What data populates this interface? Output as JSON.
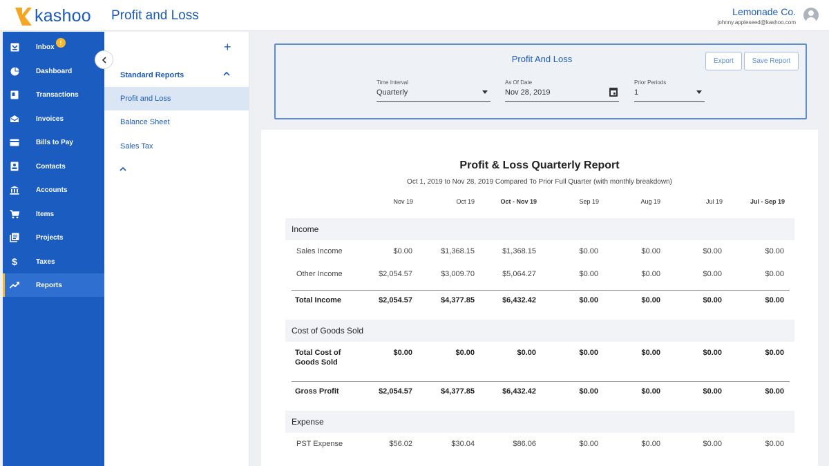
{
  "app": {
    "brand": "kashoo",
    "page_title": "Profit and Loss"
  },
  "account": {
    "company": "Lemonade Co.",
    "email": "johnny.appleseed@kashoo.com"
  },
  "nav": {
    "items": [
      {
        "label": "Inbox",
        "icon": "inbox-icon",
        "badge": "!"
      },
      {
        "label": "Dashboard",
        "icon": "dashboard-icon"
      },
      {
        "label": "Transactions",
        "icon": "transactions-icon"
      },
      {
        "label": "Invoices",
        "icon": "invoices-icon"
      },
      {
        "label": "Bills to Pay",
        "icon": "bills-icon"
      },
      {
        "label": "Contacts",
        "icon": "contacts-icon"
      },
      {
        "label": "Accounts",
        "icon": "bank-icon"
      },
      {
        "label": "Items",
        "icon": "cart-icon"
      },
      {
        "label": "Projects",
        "icon": "projects-icon"
      },
      {
        "label": "Taxes",
        "icon": "dollar-icon"
      },
      {
        "label": "Reports",
        "icon": "trend-icon"
      }
    ],
    "active": "Reports"
  },
  "subnav": {
    "section": "Standard Reports",
    "items": [
      "Profit and Loss",
      "Balance Sheet",
      "Sales Tax"
    ],
    "active": "Profit and Loss"
  },
  "filter": {
    "title": "Profit And Loss",
    "export_label": "Export",
    "save_label": "Save Report",
    "time_interval": {
      "label": "Time Interval",
      "value": "Quarterly"
    },
    "as_of_date": {
      "label": "As Of Date",
      "value": "Nov 28, 2019"
    },
    "prior_periods": {
      "label": "Prior Periods",
      "value": "1"
    }
  },
  "report": {
    "title": "Profit & Loss Quarterly Report",
    "subtitle": "Oct 1, 2019 to Nov 28, 2019 Compared To Prior Full Quarter (with monthly breakdown)",
    "columns": [
      "Nov 19",
      "Oct 19",
      "Oct - Nov 19",
      "Sep 19",
      "Aug 19",
      "Jul 19",
      "Jul - Sep 19"
    ],
    "sections": {
      "income": "Income",
      "cogs": "Cost of Goods Sold",
      "expense": "Expense"
    },
    "rows": {
      "sales_income": {
        "label": "Sales Income",
        "values": [
          "$0.00",
          "$1,368.15",
          "$1,368.15",
          "$0.00",
          "$0.00",
          "$0.00",
          "$0.00"
        ]
      },
      "other_income": {
        "label": "Other Income",
        "values": [
          "$2,054.57",
          "$3,009.70",
          "$5,064.27",
          "$0.00",
          "$0.00",
          "$0.00",
          "$0.00"
        ]
      },
      "total_income": {
        "label": "Total Income",
        "values": [
          "$2,054.57",
          "$4,377.85",
          "$6,432.42",
          "$0.00",
          "$0.00",
          "$0.00",
          "$0.00"
        ]
      },
      "total_cogs": {
        "label_line1": "Total Cost of",
        "label_line2": "Goods Sold",
        "values": [
          "$0.00",
          "$0.00",
          "$0.00",
          "$0.00",
          "$0.00",
          "$0.00",
          "$0.00"
        ]
      },
      "gross_profit": {
        "label": "Gross Profit",
        "values": [
          "$2,054.57",
          "$4,377.85",
          "$6,432.42",
          "$0.00",
          "$0.00",
          "$0.00",
          "$0.00"
        ]
      },
      "pst_expense": {
        "label": "PST Expense",
        "values": [
          "$56.02",
          "$30.04",
          "$86.06",
          "$0.00",
          "$0.00",
          "$0.00",
          "$0.00"
        ]
      }
    }
  }
}
